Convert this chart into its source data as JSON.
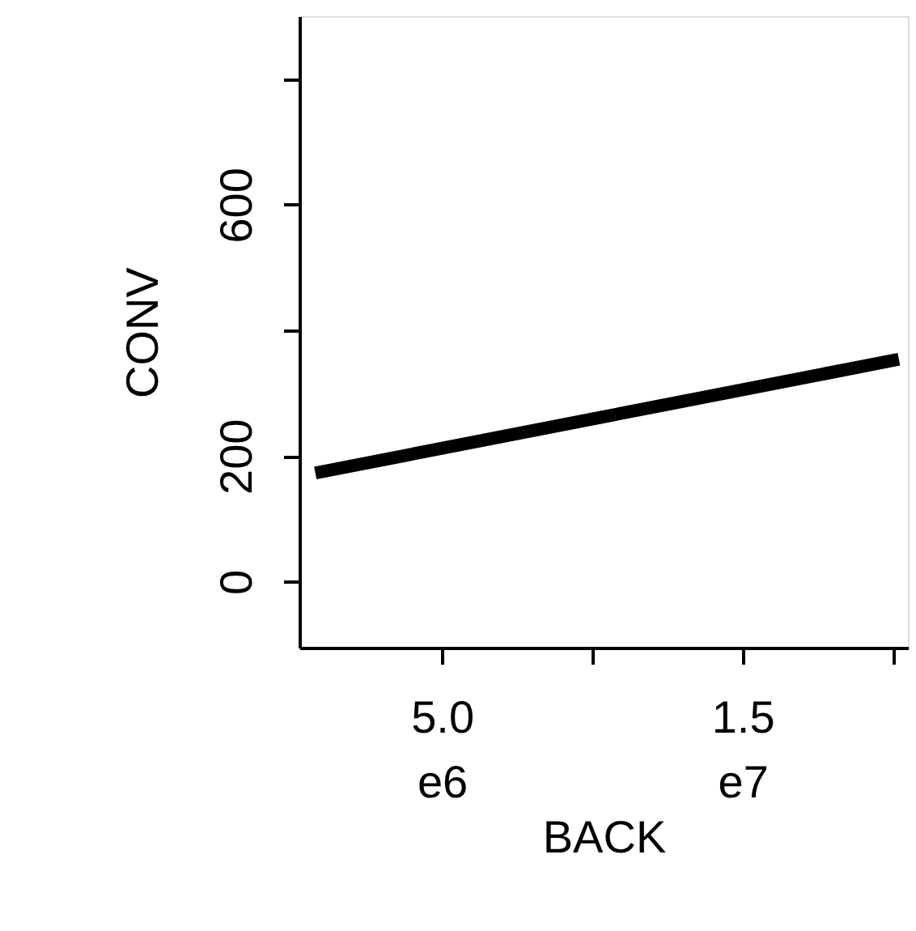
{
  "chart_data": {
    "type": "line",
    "xlabel": "BACK",
    "ylabel": "CONV",
    "x": [
      790000,
      20200000
    ],
    "series": [
      {
        "color": "#000000",
        "values": [
          173,
          354
        ]
      }
    ],
    "xlim": [
      260000,
      20500000
    ],
    "xticks": [
      {
        "value": 5000000,
        "label": "5.0e6"
      },
      {
        "value": 10000000,
        "label": null
      },
      {
        "value": 15000000,
        "label": "1.5e7"
      },
      {
        "value": 20000000,
        "label": null
      }
    ],
    "ylim": [
      -105,
      900
    ],
    "yticks": [
      0,
      200,
      {
        "value": 400,
        "label": null
      },
      600,
      {
        "value": 800,
        "label": null
      }
    ],
    "grid": false,
    "marker": "none",
    "line_style": "solid"
  }
}
